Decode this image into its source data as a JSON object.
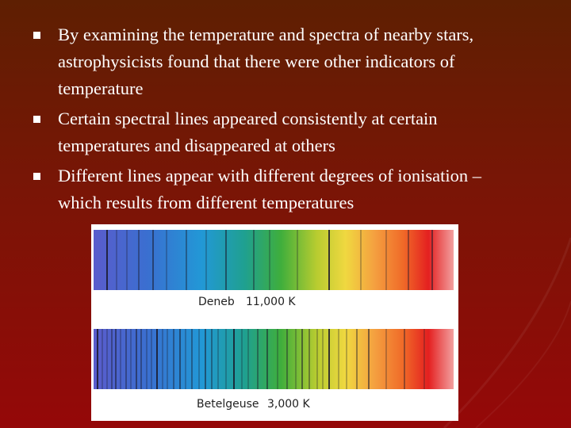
{
  "bullets": [
    "By examining the temperature and spectra of nearby stars, astrophysicists found that there were other indicators of temperature",
    "Certain spectral lines appeared consistently at certain temperatures and disappeared at others",
    "Different lines appear with different degrees of ionisation – which results from different temperatures"
  ],
  "figure": {
    "spectra": [
      {
        "star": "Deneb",
        "temperature": "11,000 K"
      },
      {
        "star": "Betelgeuse",
        "temperature": "3,000 K"
      }
    ]
  }
}
